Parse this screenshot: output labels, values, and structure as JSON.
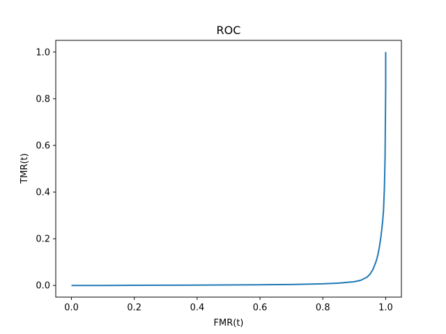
{
  "chart_data": {
    "type": "line",
    "title": "ROC",
    "xlabel": "FMR(t)",
    "ylabel": "TMR(t)",
    "xlim": [
      -0.05,
      1.05
    ],
    "ylim": [
      -0.05,
      1.05
    ],
    "x_ticks": [
      "0.0",
      "0.2",
      "0.4",
      "0.6",
      "0.8",
      "1.0"
    ],
    "y_ticks": [
      "0.0",
      "0.2",
      "0.4",
      "0.6",
      "0.8",
      "1.0"
    ],
    "grid": false,
    "series": [
      {
        "color": "#1f77b4",
        "x": [
          0.0,
          0.1,
          0.2,
          0.3,
          0.4,
          0.5,
          0.6,
          0.7,
          0.8,
          0.85,
          0.9,
          0.92,
          0.94,
          0.95,
          0.96,
          0.97,
          0.975,
          0.98,
          0.985,
          0.99,
          0.993,
          0.996,
          0.998,
          0.999,
          1.0,
          1.0
        ],
        "y": [
          0.0,
          0.0,
          0.0005,
          0.001,
          0.0015,
          0.002,
          0.003,
          0.004,
          0.007,
          0.01,
          0.016,
          0.022,
          0.035,
          0.048,
          0.07,
          0.105,
          0.13,
          0.165,
          0.21,
          0.27,
          0.32,
          0.42,
          0.55,
          0.7,
          0.85,
          1.0
        ]
      }
    ]
  }
}
